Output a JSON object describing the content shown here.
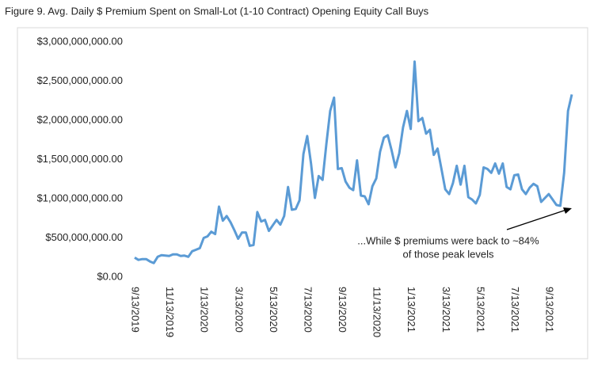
{
  "chart_data": {
    "type": "line",
    "title": "Figure 9. Avg. Daily $ Premium Spent on Small-Lot (1-10 Contract) Opening Equity Call Buys",
    "annotation": [
      "...While $ premiums were back to ~84%",
      "of those peak levels"
    ],
    "categories": [
      "9/13/2019",
      null,
      null,
      null,
      null,
      null,
      null,
      null,
      null,
      "11/13/2019",
      null,
      null,
      null,
      null,
      null,
      null,
      null,
      null,
      "1/13/2020",
      null,
      null,
      null,
      null,
      null,
      null,
      null,
      null,
      "3/13/2020",
      null,
      null,
      null,
      null,
      null,
      null,
      null,
      null,
      "5/13/2020",
      null,
      null,
      null,
      null,
      null,
      null,
      null,
      null,
      "7/13/2020",
      null,
      null,
      null,
      null,
      null,
      null,
      null,
      null,
      "9/13/2020",
      null,
      null,
      null,
      null,
      null,
      null,
      null,
      null,
      "11/13/2020",
      null,
      null,
      null,
      null,
      null,
      null,
      null,
      null,
      "1/13/2021",
      null,
      null,
      null,
      null,
      null,
      null,
      null,
      null,
      "3/13/2021",
      null,
      null,
      null,
      null,
      null,
      null,
      null,
      null,
      "5/13/2021",
      null,
      null,
      null,
      null,
      null,
      null,
      null,
      null,
      "7/13/2021",
      null,
      null,
      null,
      null,
      null,
      null,
      null,
      null,
      "9/13/2021",
      null,
      null,
      null,
      null,
      null,
      null
    ],
    "values": [
      250000000,
      220000000,
      230000000,
      230000000,
      200000000,
      180000000,
      260000000,
      280000000,
      275000000,
      270000000,
      290000000,
      290000000,
      270000000,
      275000000,
      260000000,
      330000000,
      350000000,
      370000000,
      500000000,
      520000000,
      580000000,
      550000000,
      900000000,
      720000000,
      780000000,
      700000000,
      600000000,
      490000000,
      570000000,
      570000000,
      400000000,
      410000000,
      830000000,
      710000000,
      730000000,
      590000000,
      660000000,
      730000000,
      670000000,
      780000000,
      1150000000,
      860000000,
      870000000,
      980000000,
      1570000000,
      1800000000,
      1450000000,
      1010000000,
      1290000000,
      1240000000,
      1700000000,
      2120000000,
      2290000000,
      1380000000,
      1390000000,
      1220000000,
      1140000000,
      1110000000,
      1490000000,
      1040000000,
      1030000000,
      930000000,
      1160000000,
      1260000000,
      1600000000,
      1780000000,
      1810000000,
      1620000000,
      1400000000,
      1580000000,
      1910000000,
      2120000000,
      1890000000,
      2750000000,
      1990000000,
      2030000000,
      1830000000,
      1880000000,
      1560000000,
      1640000000,
      1380000000,
      1120000000,
      1060000000,
      1200000000,
      1420000000,
      1180000000,
      1420000000,
      1020000000,
      990000000,
      940000000,
      1050000000,
      1400000000,
      1380000000,
      1330000000,
      1450000000,
      1320000000,
      1450000000,
      1150000000,
      1120000000,
      1300000000,
      1310000000,
      1120000000,
      1060000000,
      1140000000,
      1190000000,
      1160000000,
      960000000,
      1010000000,
      1060000000,
      990000000,
      920000000,
      910000000,
      1330000000,
      2120000000,
      2330000000
    ],
    "color": "#5b9bd5",
    "ylim": [
      0,
      3000000000
    ],
    "yticks": [
      {
        "value": 0,
        "label": "$0.00"
      },
      {
        "value": 500000000,
        "label": "$500,000,000.00"
      },
      {
        "value": 1000000000,
        "label": "$1,000,000,000.00"
      },
      {
        "value": 1500000000,
        "label": "$1,500,000,000.00"
      },
      {
        "value": 2000000000,
        "label": "$2,000,000,000.00"
      },
      {
        "value": 2500000000,
        "label": "$2,500,000,000.00"
      },
      {
        "value": 3000000000,
        "label": "$3,000,000,000.00"
      }
    ],
    "grid": false
  }
}
